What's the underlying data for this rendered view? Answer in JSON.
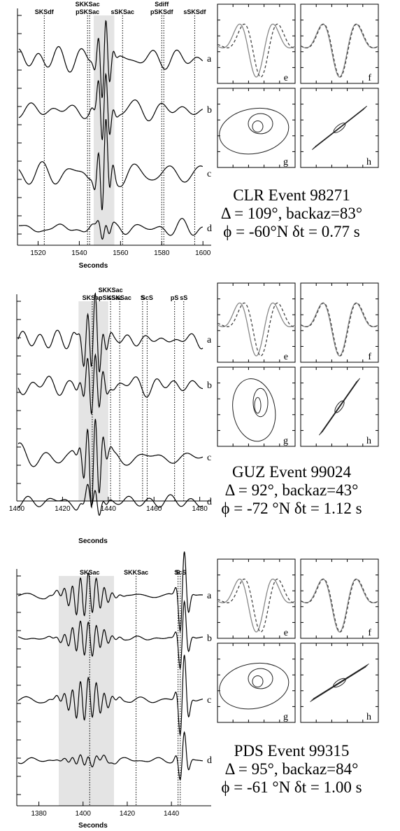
{
  "xlabel": "Seconds",
  "trace_letters": [
    "a",
    "b",
    "c",
    "d"
  ],
  "inset_letters": [
    "e",
    "f",
    "g",
    "h"
  ],
  "panels": [
    {
      "station": "CLR",
      "event_label": "Event",
      "event_id": "98271",
      "line2": "Δ = 109°, backaz=83°",
      "line3": "ϕ = -60°N δt = 0.77 s",
      "xlim": [
        1510,
        1604
      ],
      "ticks": [
        1520,
        1540,
        1560,
        1580,
        1600
      ],
      "shade": [
        1547,
        1557
      ],
      "phases": [
        {
          "t": 1523,
          "labels": [
            "SKSdf"
          ]
        },
        {
          "t": 1544,
          "labels": [
            "SKKSac",
            "pSKSac"
          ]
        },
        {
          "t": 1545,
          "labels": []
        },
        {
          "t": 1561,
          "labels": [
            "sSKSac"
          ]
        },
        {
          "t": 1580,
          "labels": [
            "Sdiff",
            "pSKSdf"
          ]
        },
        {
          "t": 1581,
          "labels": []
        },
        {
          "t": 1596,
          "labels": [
            "sSKSdf"
          ]
        }
      ]
    },
    {
      "station": "GUZ",
      "event_label": "Event",
      "event_id": "99024",
      "line2": "Δ = 92°, backaz=43°",
      "line3": "ϕ = -72 °N   δt = 1.12  s",
      "xlim": [
        1400,
        1485
      ],
      "ticks": [
        1420,
        1440,
        1460,
        1480
      ],
      "tick_left": "1400",
      "shade": [
        1427,
        1440
      ],
      "phases": [
        {
          "t": 1433,
          "labels": [
            "SKSac"
          ]
        },
        {
          "t": 1441,
          "labels": [
            "SKKSac",
            "pSKSac"
          ]
        },
        {
          "t": 1445,
          "labels": [
            "sSKSac"
          ]
        },
        {
          "t": 1455,
          "labels": [
            "S"
          ]
        },
        {
          "t": 1457,
          "labels": [
            "ScS"
          ]
        },
        {
          "t": 1469,
          "labels": [
            "pS"
          ]
        },
        {
          "t": 1473,
          "labels": [
            "sS"
          ]
        }
      ]
    },
    {
      "station": "PDS",
      "event_label": "Event",
      "event_id": "99315",
      "line2": "Δ = 95°, backaz=84°",
      "line3": "ϕ = -61 °N    δt = 1.00  s",
      "xlim": [
        1370,
        1458
      ],
      "ticks": [
        1380,
        1400,
        1420,
        1440
      ],
      "shade": [
        1389,
        1414
      ],
      "phases": [
        {
          "t": 1403,
          "labels": [
            "SKSac"
          ]
        },
        {
          "t": 1424,
          "labels": [
            "SKKSac"
          ]
        },
        {
          "t": 1443,
          "labels": [
            "S"
          ]
        },
        {
          "t": 1444,
          "labels": [
            "ScS"
          ]
        }
      ]
    }
  ]
}
